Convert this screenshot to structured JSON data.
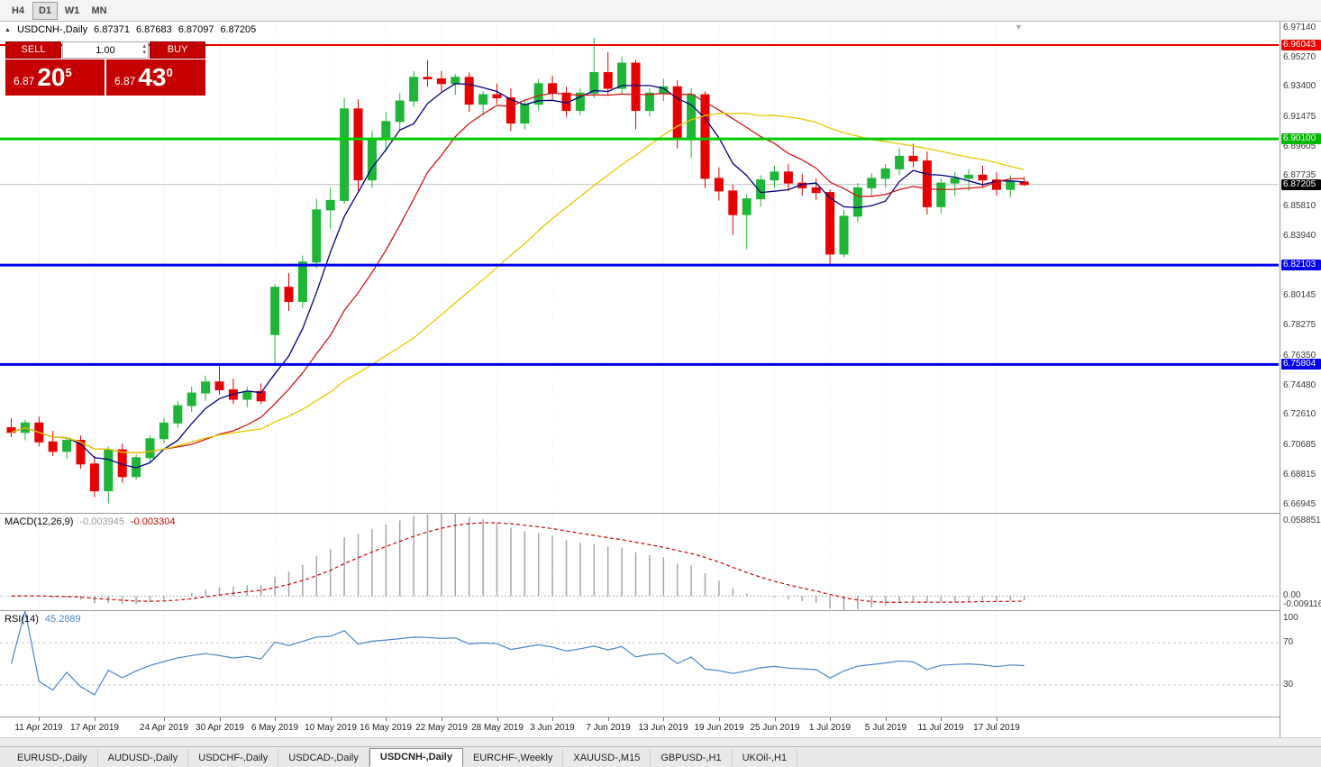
{
  "toolbar": {
    "timeframes": [
      {
        "label": "H4"
      },
      {
        "label": "D1"
      },
      {
        "label": "W1"
      },
      {
        "label": "MN"
      }
    ],
    "active": "D1"
  },
  "chart_header": {
    "expand_icon": "▲",
    "shift_marker_icon": "▼",
    "symbol": "USDCNH-,Daily",
    "open": "6.87371",
    "high": "6.87683",
    "low": "6.87097",
    "close": "6.87205"
  },
  "trade_panel": {
    "sell_label": "SELL",
    "buy_label": "BUY",
    "volume": "1.00",
    "spin_up_icon": "▴",
    "spin_down_icon": "▾",
    "sell_price_main": "6.87",
    "sell_price_big": "20",
    "sell_price_sup": "5",
    "buy_price_main": "6.87",
    "buy_price_big": "43",
    "buy_price_sup": "0"
  },
  "price_axis": {
    "labels": [
      "6.97140",
      "6.95270",
      "6.93400",
      "6.91475",
      "6.89605",
      "6.87735",
      "6.85810",
      "6.83940",
      "6.80145",
      "6.78275",
      "6.76350",
      "6.74480",
      "6.72610",
      "6.70685",
      "6.68815",
      "6.66945"
    ],
    "level_labels": [
      {
        "text": "6.96043",
        "color": "#ee0000"
      },
      {
        "text": "6.90100",
        "color": "#00b800"
      },
      {
        "text": "6.82103",
        "color": "#0000ee"
      },
      {
        "text": "6.75804",
        "color": "#0000ee"
      }
    ],
    "current_label": {
      "text": "6.87205",
      "bg": "#000000"
    }
  },
  "macd_panel": {
    "name": "MACD(12,26,9)",
    "main_value": "-0.003945",
    "signal_value": "-0.003304",
    "axis_labels": [
      "0.058851",
      "0.00",
      "-0.009116"
    ]
  },
  "rsi_panel": {
    "name": "RSI(14)",
    "value": "45.2889",
    "axis_labels": [
      "100",
      "70",
      "30"
    ]
  },
  "tabs": {
    "active": "USDCNH-,Daily",
    "items": [
      "EURUSD-,Daily",
      "AUDUSD-,Daily",
      "USDCHF-,Daily",
      "USDCAD-,Daily",
      "USDCNH-,Daily",
      "EURCHF-,Weekly",
      "XAUUSD-,M15",
      "GBPUSD-,H1",
      "UKOil-,H1"
    ]
  },
  "chart_data": {
    "type": "candlestick",
    "symbol": "USDCNH",
    "timeframe": "Daily",
    "y_range": [
      6.66406,
      6.97528
    ],
    "bid": 6.87205,
    "up_color": "#1fb537",
    "down_color": "#e60000",
    "hlines": [
      {
        "price": 6.96043,
        "color": "#ee0000",
        "width": 2
      },
      {
        "price": 6.901,
        "color": "#00cc00",
        "width": 3
      },
      {
        "price": 6.82103,
        "color": "#0000ee",
        "width": 3
      },
      {
        "price": 6.75804,
        "color": "#0000ee",
        "width": 3
      }
    ],
    "moving_averages": [
      {
        "period": 5,
        "color": "#000080"
      },
      {
        "period": 12,
        "color": "#d01818"
      },
      {
        "period": 30,
        "color": "#e3cc00"
      }
    ],
    "indicators": {
      "macd": {
        "fast": 12,
        "slow": 26,
        "signal": 9,
        "histogram_color": "#a6a6a6",
        "signal_color": "#cc0000"
      },
      "rsi": {
        "period": 14,
        "color": "#4a86c8",
        "levels": [
          70,
          30
        ]
      }
    },
    "x_ticks": [
      {
        "i": 2,
        "label": "11 Apr 2019"
      },
      {
        "i": 6,
        "label": "17 Apr 2019"
      },
      {
        "i": 11,
        "label": "24 Apr 2019"
      },
      {
        "i": 15,
        "label": "30 Apr 2019"
      },
      {
        "i": 19,
        "label": "6 May 2019"
      },
      {
        "i": 23,
        "label": "10 May 2019"
      },
      {
        "i": 27,
        "label": "16 May 2019"
      },
      {
        "i": 31,
        "label": "22 May 2019"
      },
      {
        "i": 35,
        "label": "28 May 2019"
      },
      {
        "i": 39,
        "label": "3 Jun 2019"
      },
      {
        "i": 43,
        "label": "7 Jun 2019"
      },
      {
        "i": 47,
        "label": "13 Jun 2019"
      },
      {
        "i": 51,
        "label": "19 Jun 2019"
      },
      {
        "i": 55,
        "label": "25 Jun 2019"
      },
      {
        "i": 59,
        "label": "1 Jul 2019"
      },
      {
        "i": 63,
        "label": "5 Jul 2019"
      },
      {
        "i": 67,
        "label": "11 Jul 2019"
      },
      {
        "i": 71,
        "label": "17 Jul 2019"
      }
    ],
    "candles": [
      [
        "2019-04-09",
        6.718,
        6.724,
        6.712,
        6.715
      ],
      [
        "2019-04-10",
        6.715,
        6.723,
        6.71,
        6.721
      ],
      [
        "2019-04-11",
        6.721,
        6.725,
        6.706,
        6.709
      ],
      [
        "2019-04-12",
        6.709,
        6.716,
        6.7,
        6.703
      ],
      [
        "2019-04-15",
        6.703,
        6.712,
        6.698,
        6.71
      ],
      [
        "2019-04-16",
        6.71,
        6.713,
        6.692,
        6.695
      ],
      [
        "2019-04-17",
        6.695,
        6.7,
        6.674,
        6.678
      ],
      [
        "2019-04-18",
        6.678,
        6.706,
        6.67,
        6.704
      ],
      [
        "2019-04-19",
        6.704,
        6.708,
        6.683,
        6.687
      ],
      [
        "2019-04-22",
        6.687,
        6.701,
        6.685,
        6.699
      ],
      [
        "2019-04-23",
        6.699,
        6.713,
        6.696,
        6.711
      ],
      [
        "2019-04-24",
        6.711,
        6.724,
        6.708,
        6.721
      ],
      [
        "2019-04-25",
        6.721,
        6.735,
        6.718,
        6.732
      ],
      [
        "2019-04-26",
        6.732,
        6.744,
        6.728,
        6.74
      ],
      [
        "2019-04-29",
        6.74,
        6.751,
        6.735,
        6.747
      ],
      [
        "2019-04-30",
        6.747,
        6.757,
        6.739,
        6.742
      ],
      [
        "2019-05-01",
        6.742,
        6.749,
        6.733,
        6.736
      ],
      [
        "2019-05-02",
        6.736,
        6.744,
        6.731,
        6.741
      ],
      [
        "2019-05-03",
        6.741,
        6.746,
        6.733,
        6.735
      ],
      [
        "2019-05-06",
        6.777,
        6.809,
        6.757,
        6.807
      ],
      [
        "2019-05-07",
        6.807,
        6.816,
        6.792,
        6.798
      ],
      [
        "2019-05-08",
        6.798,
        6.827,
        6.794,
        6.823
      ],
      [
        "2019-05-09",
        6.823,
        6.863,
        6.819,
        6.856
      ],
      [
        "2019-05-10",
        6.856,
        6.87,
        6.844,
        6.862
      ],
      [
        "2019-05-13",
        6.862,
        6.927,
        6.86,
        6.92
      ],
      [
        "2019-05-14",
        6.92,
        6.926,
        6.868,
        6.875
      ],
      [
        "2019-05-15",
        6.875,
        6.906,
        6.87,
        6.901
      ],
      [
        "2019-05-16",
        6.901,
        6.918,
        6.893,
        6.912
      ],
      [
        "2019-05-17",
        6.912,
        6.93,
        6.906,
        6.925
      ],
      [
        "2019-05-20",
        6.925,
        6.944,
        6.921,
        6.94
      ],
      [
        "2019-05-21",
        6.94,
        6.951,
        6.934,
        6.939
      ],
      [
        "2019-05-22",
        6.939,
        6.944,
        6.931,
        6.936
      ],
      [
        "2019-05-23",
        6.936,
        6.942,
        6.929,
        6.94
      ],
      [
        "2019-05-24",
        6.94,
        6.943,
        6.918,
        6.923
      ],
      [
        "2019-05-27",
        6.923,
        6.931,
        6.916,
        6.929
      ],
      [
        "2019-05-28",
        6.929,
        6.936,
        6.923,
        6.927
      ],
      [
        "2019-05-29",
        6.927,
        6.933,
        6.906,
        6.911
      ],
      [
        "2019-05-30",
        6.911,
        6.926,
        6.907,
        6.923
      ],
      [
        "2019-05-31",
        6.923,
        6.939,
        6.919,
        6.936
      ],
      [
        "2019-06-03",
        6.936,
        6.941,
        6.926,
        6.93
      ],
      [
        "2019-06-04",
        6.93,
        6.934,
        6.915,
        6.919
      ],
      [
        "2019-06-05",
        6.919,
        6.933,
        6.916,
        6.93
      ],
      [
        "2019-06-06",
        6.93,
        6.965,
        6.927,
        6.943
      ],
      [
        "2019-06-07",
        6.943,
        6.956,
        6.929,
        6.933
      ],
      [
        "2019-06-10",
        6.933,
        6.953,
        6.93,
        6.949
      ],
      [
        "2019-06-11",
        6.949,
        6.951,
        6.907,
        6.919
      ],
      [
        "2019-06-12",
        6.919,
        6.933,
        6.915,
        6.93
      ],
      [
        "2019-06-13",
        6.93,
        6.939,
        6.925,
        6.934
      ],
      [
        "2019-06-14",
        6.934,
        6.938,
        6.895,
        6.901
      ],
      [
        "2019-06-17",
        6.901,
        6.933,
        6.889,
        6.929
      ],
      [
        "2019-06-18",
        6.929,
        6.931,
        6.87,
        6.876
      ],
      [
        "2019-06-19",
        6.876,
        6.883,
        6.862,
        6.868
      ],
      [
        "2019-06-20",
        6.868,
        6.872,
        6.84,
        6.853
      ],
      [
        "2019-06-21",
        6.853,
        6.866,
        6.831,
        6.863
      ],
      [
        "2019-06-24",
        6.863,
        6.878,
        6.858,
        6.875
      ],
      [
        "2019-06-25",
        6.875,
        6.884,
        6.87,
        6.88
      ],
      [
        "2019-06-26",
        6.88,
        6.885,
        6.868,
        6.873
      ],
      [
        "2019-06-27",
        6.873,
        6.879,
        6.865,
        6.87
      ],
      [
        "2019-06-28",
        6.87,
        6.876,
        6.862,
        6.867
      ],
      [
        "2019-07-01",
        6.867,
        6.869,
        6.821,
        6.828
      ],
      [
        "2019-07-02",
        6.828,
        6.856,
        6.826,
        6.852
      ],
      [
        "2019-07-03",
        6.852,
        6.873,
        6.848,
        6.87
      ],
      [
        "2019-07-04",
        6.87,
        6.879,
        6.865,
        6.876
      ],
      [
        "2019-07-05",
        6.876,
        6.885,
        6.87,
        6.882
      ],
      [
        "2019-07-08",
        6.882,
        6.895,
        6.878,
        6.89
      ],
      [
        "2019-07-09",
        6.89,
        6.898,
        6.883,
        6.887
      ],
      [
        "2019-07-10",
        6.887,
        6.893,
        6.853,
        6.858
      ],
      [
        "2019-07-11",
        6.858,
        6.876,
        6.854,
        6.873
      ],
      [
        "2019-07-12",
        6.873,
        6.88,
        6.865,
        6.876
      ],
      [
        "2019-07-15",
        6.876,
        6.882,
        6.868,
        6.878
      ],
      [
        "2019-07-16",
        6.878,
        6.884,
        6.87,
        6.875
      ],
      [
        "2019-07-17",
        6.875,
        6.88,
        6.865,
        6.869
      ],
      [
        "2019-07-18",
        6.869,
        6.878,
        6.864,
        6.874
      ],
      [
        "2019-07-19",
        6.87371,
        6.87683,
        6.87097,
        6.87205
      ]
    ]
  }
}
